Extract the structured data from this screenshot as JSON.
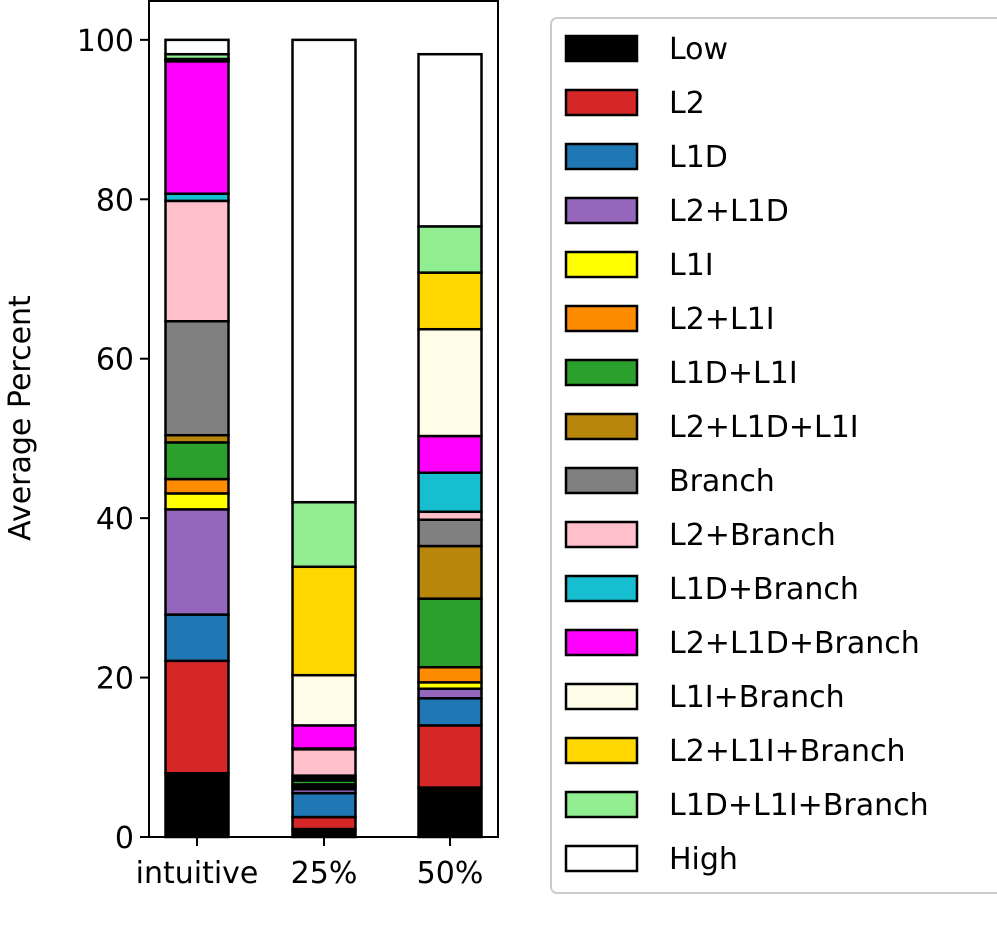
{
  "chart_data": {
    "type": "bar",
    "stacked": true,
    "ylabel": "Average Percent",
    "xlabel": "",
    "ylim": [
      0,
      105
    ],
    "yticks": [
      0,
      20,
      40,
      60,
      80,
      100
    ],
    "categories": [
      "intuitive",
      "25%",
      "50%"
    ],
    "legend_position": "right",
    "series": [
      {
        "name": "Low",
        "color": "#000000",
        "values": [
          8.0,
          1.0,
          6.2
        ]
      },
      {
        "name": "L2",
        "color": "#d62728",
        "values": [
          14.1,
          1.5,
          7.8
        ]
      },
      {
        "name": "L1D",
        "color": "#1f77b4",
        "values": [
          5.8,
          3.0,
          3.4
        ]
      },
      {
        "name": "L2+L1D",
        "color": "#9467bd",
        "values": [
          13.2,
          0.5,
          1.2
        ]
      },
      {
        "name": "L1I",
        "color": "#ffff00",
        "values": [
          2.0,
          0.3,
          0.8
        ]
      },
      {
        "name": "L2+L1I",
        "color": "#ff8c00",
        "values": [
          1.8,
          0.3,
          1.9
        ]
      },
      {
        "name": "L1D+L1I",
        "color": "#2ca02c",
        "values": [
          4.6,
          0.5,
          8.6
        ]
      },
      {
        "name": "L2+L1D+L1I",
        "color": "#b8860b",
        "values": [
          0.9,
          0.3,
          6.6
        ]
      },
      {
        "name": "Branch",
        "color": "#808080",
        "values": [
          14.3,
          0.3,
          3.3
        ]
      },
      {
        "name": "L2+Branch",
        "color": "#ffc0cb",
        "values": [
          15.1,
          3.3,
          1.0
        ]
      },
      {
        "name": "L1D+Branch",
        "color": "#17becf",
        "values": [
          0.9,
          0.1,
          4.9
        ]
      },
      {
        "name": "L2+L1D+Branch",
        "color": "#ff00ff",
        "values": [
          16.6,
          2.9,
          4.6
        ]
      },
      {
        "name": "L1I+Branch",
        "color": "#fffde7",
        "values": [
          0.2,
          6.3,
          13.4
        ]
      },
      {
        "name": "L2+L1I+Branch",
        "color": "#ffd700",
        "values": [
          0.1,
          13.6,
          7.1
        ]
      },
      {
        "name": "L1D+L1I+Branch",
        "color": "#90ee90",
        "values": [
          0.6,
          8.1,
          5.8
        ]
      },
      {
        "name": "High",
        "color": "#ffffff",
        "values": [
          1.8,
          58.0,
          21.6
        ]
      }
    ]
  }
}
